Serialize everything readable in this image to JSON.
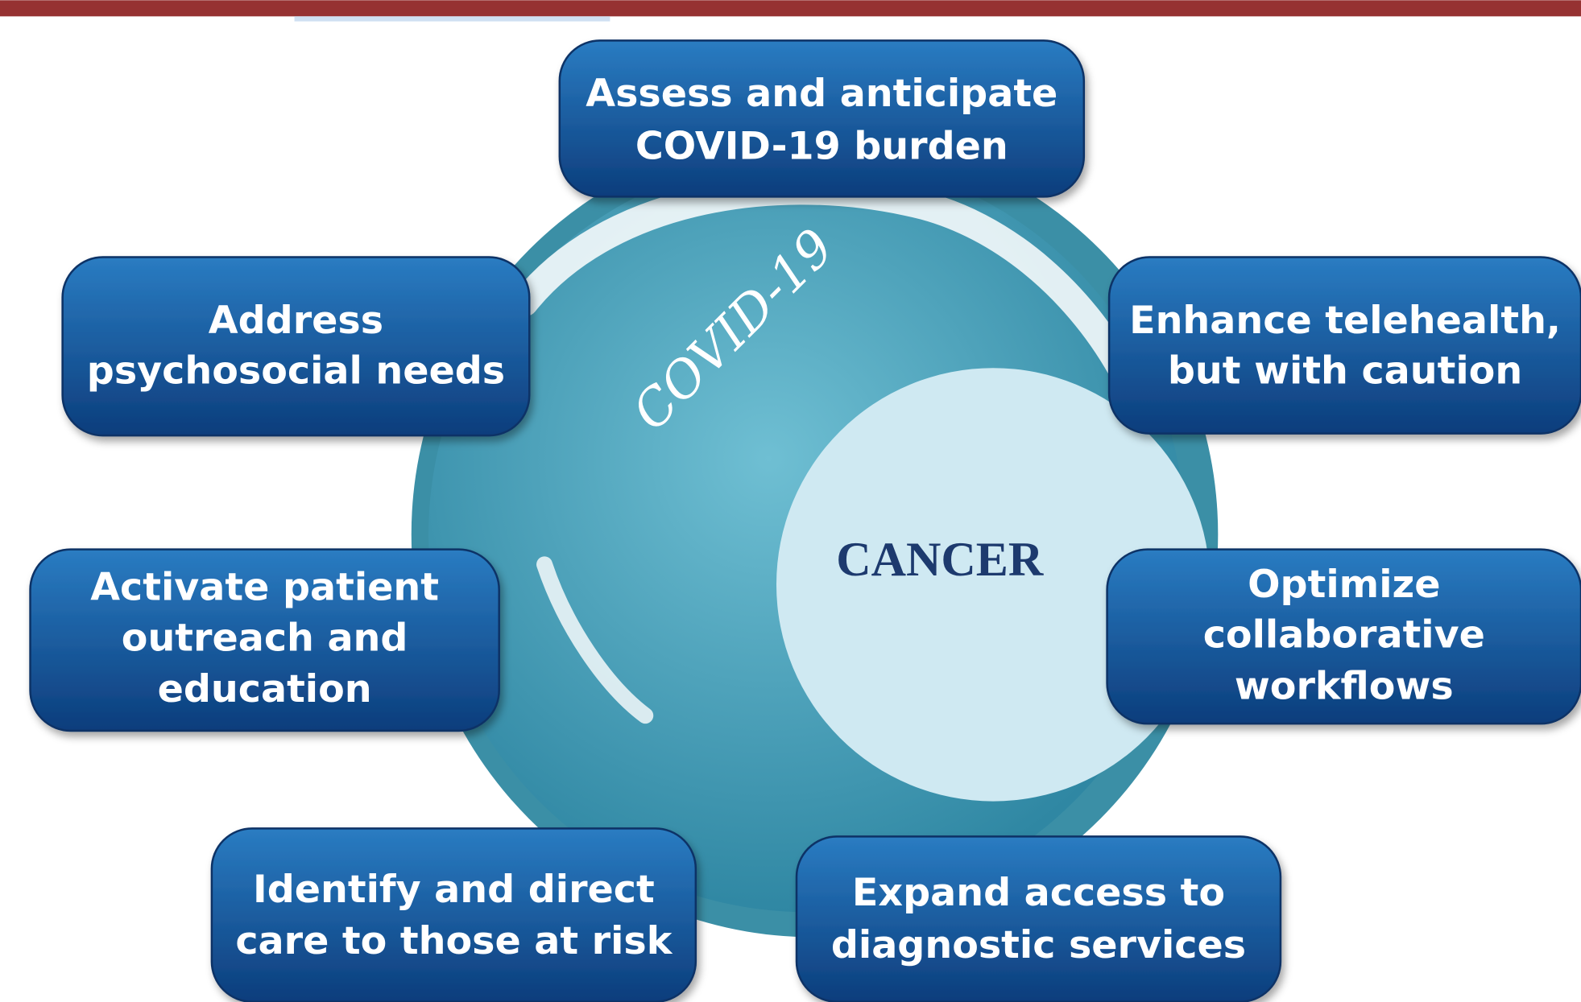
{
  "center": {
    "wave_label": "COVID-19",
    "core_label": "CANCER"
  },
  "actions": [
    {
      "lines": [
        "Assess and anticipate",
        "COVID-19 burden"
      ]
    },
    {
      "lines": [
        "Address",
        "psychosocial needs"
      ]
    },
    {
      "lines": [
        "Enhance telehealth,",
        "but with caution"
      ]
    },
    {
      "lines": [
        "Activate patient",
        "outreach and",
        "education"
      ]
    },
    {
      "lines": [
        "Optimize",
        "collaborative",
        "workflows"
      ]
    },
    {
      "lines": [
        "Identify and direct",
        "care to those at risk"
      ]
    },
    {
      "lines": [
        "Expand access to",
        "diagnostic services"
      ]
    }
  ]
}
